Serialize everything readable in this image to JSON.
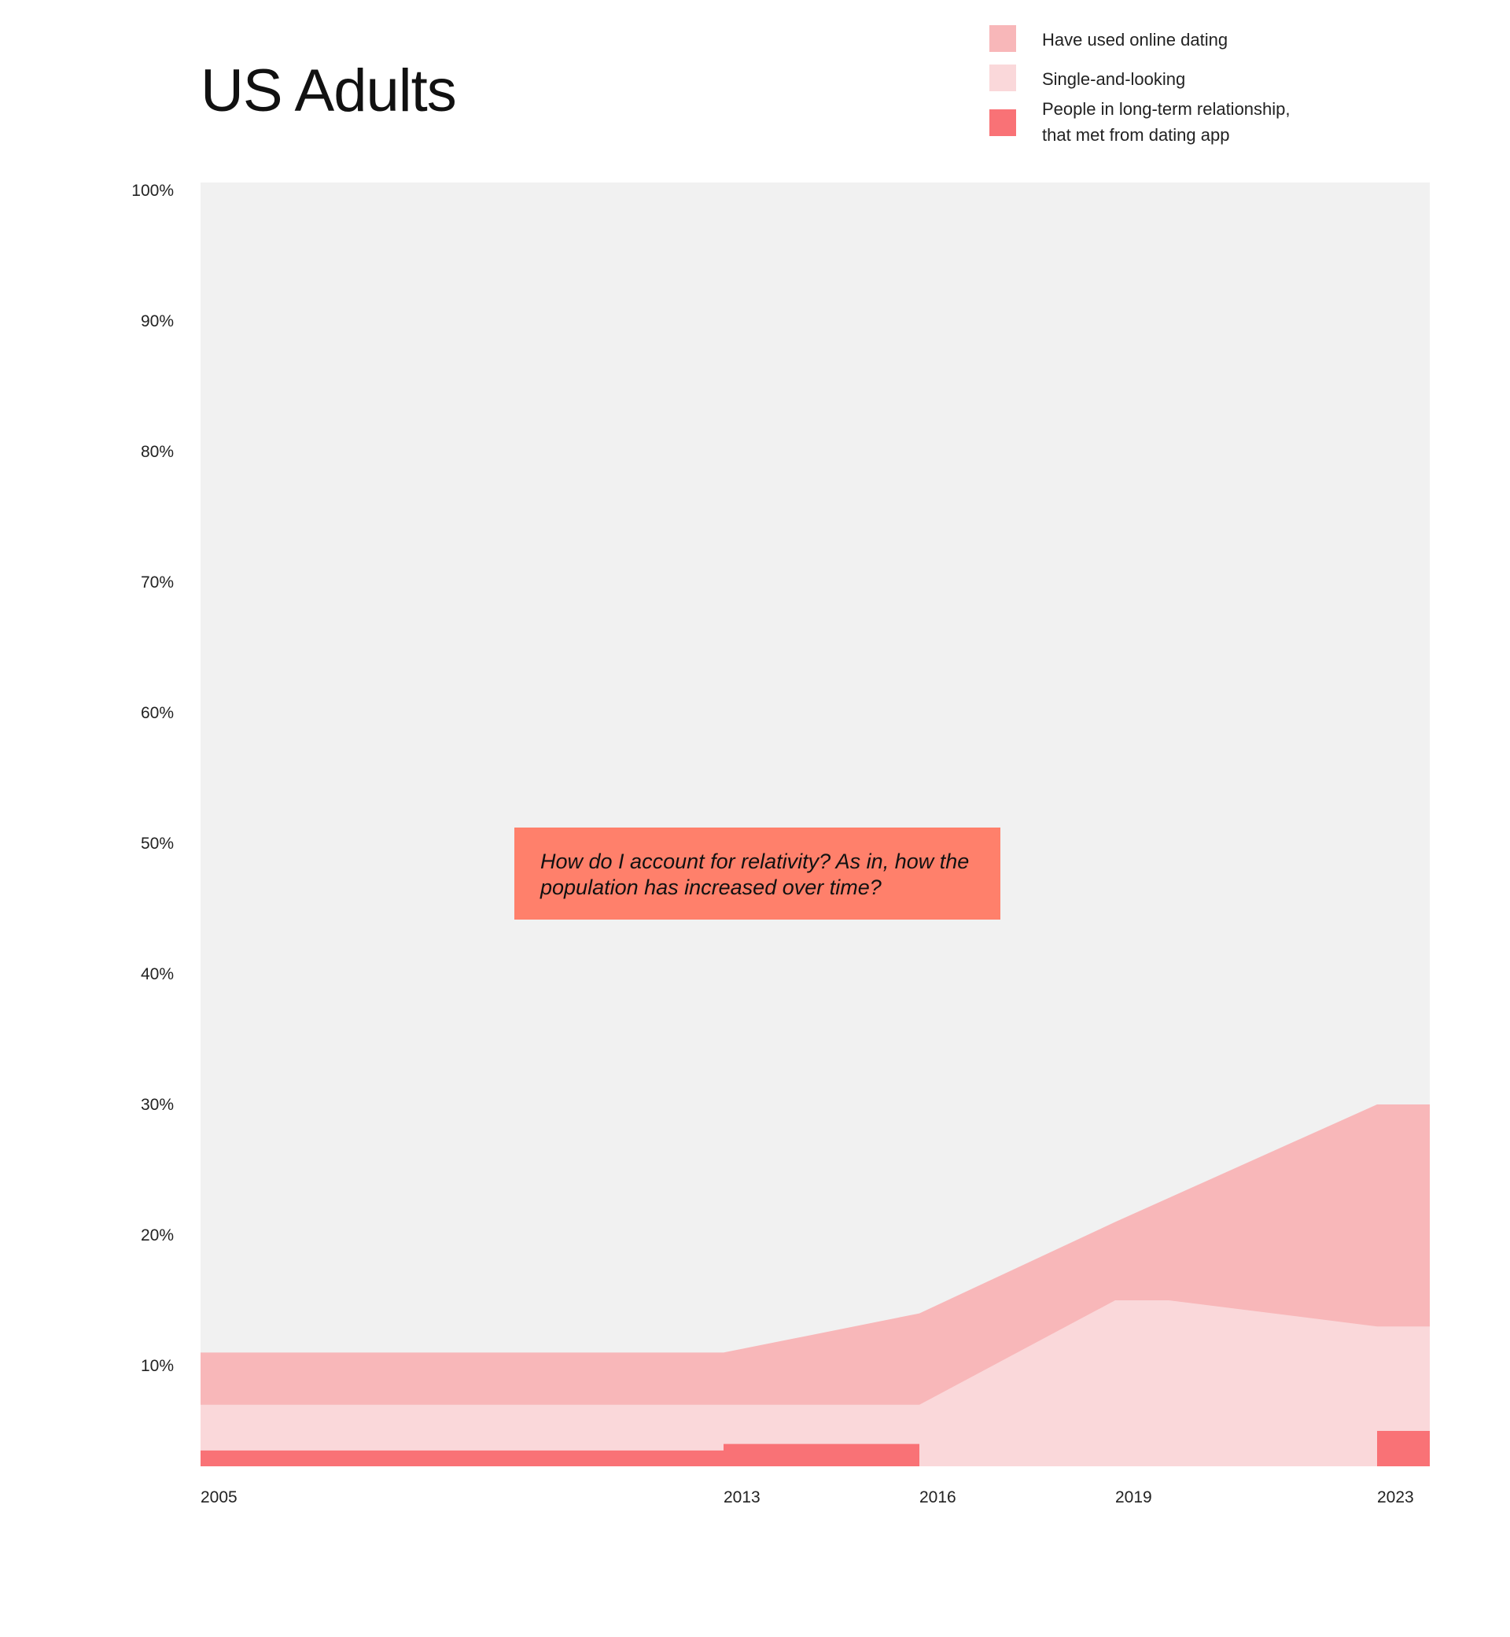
{
  "chart_data": {
    "type": "area",
    "title": "US Adults",
    "x": [
      2005,
      2013,
      2016,
      2019,
      2023
    ],
    "x_tick_labels": [
      "2005",
      "2013",
      "2016",
      "2019",
      "2023"
    ],
    "ylim": [
      0,
      100
    ],
    "y_ticks": [
      10,
      20,
      30,
      40,
      50,
      60,
      70,
      80,
      90,
      100
    ],
    "y_tick_labels": [
      "10%",
      "20%",
      "30%",
      "40%",
      "50%",
      "60%",
      "70%",
      "80%",
      "90%",
      "100%"
    ],
    "series": [
      {
        "name": "Have used online dating",
        "color": "#f8b7b9",
        "points": [
          [
            2005,
            11
          ],
          [
            2013,
            11
          ],
          [
            2016,
            14
          ],
          [
            2019,
            21
          ],
          [
            2023,
            30
          ]
        ]
      },
      {
        "name": "Single-and-looking",
        "color": "#fad8da",
        "points": [
          [
            2005,
            7
          ],
          [
            2013,
            7
          ],
          [
            2016,
            7
          ],
          [
            2019,
            15
          ],
          [
            2023,
            13
          ]
        ]
      },
      {
        "name": "People in long-term relationship, that met from dating app",
        "name_lines": [
          "People in long-term relationship,",
          "that met from dating app"
        ],
        "color": "#f97276",
        "bars": [
          {
            "x0": 2005,
            "x1": 2013,
            "value": 3.5
          },
          {
            "x0": 2013,
            "x1": 2016,
            "value": 4
          },
          {
            "x0": 2023,
            "x1": 2023,
            "value": 5
          }
        ]
      }
    ],
    "background_color": "#f1f1f1",
    "annotation": "How do I account for relativity? As in, how the population has increased over time?",
    "annotation_lines": [
      "How do I account for relativity? As in, how the",
      "population has increased over time?"
    ],
    "annotation_color": "#ff806b"
  }
}
